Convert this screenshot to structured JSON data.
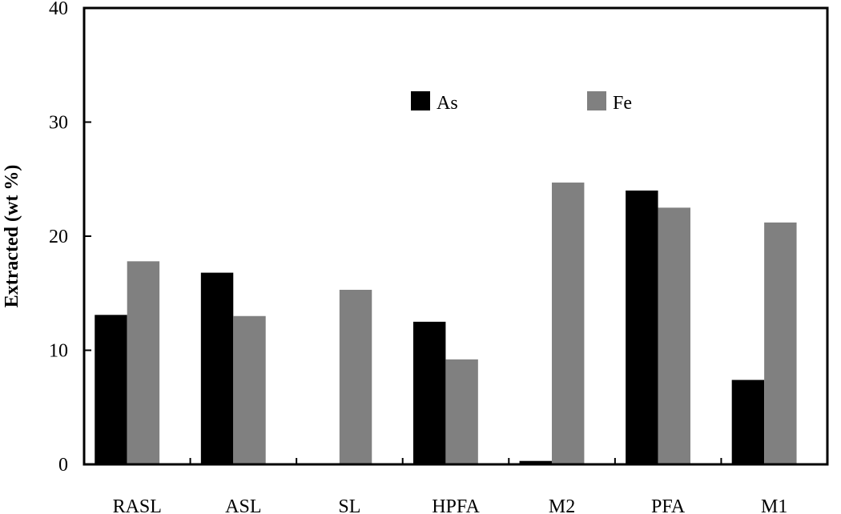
{
  "chart_data": {
    "type": "bar",
    "title": "",
    "xlabel": "",
    "ylabel": "Extracted (wt %)",
    "ylim": [
      0,
      40
    ],
    "yticks": [
      0,
      10,
      20,
      30,
      40
    ],
    "grid": false,
    "legend_position": "top-center",
    "categories": [
      "RASL",
      "ASL",
      "SL",
      "HPFA",
      "M2",
      "PFA",
      "M1"
    ],
    "series": [
      {
        "name": "As",
        "color": "#000000",
        "values": [
          13.1,
          16.8,
          0.0,
          12.5,
          0.3,
          24.0,
          7.4
        ]
      },
      {
        "name": "Fe",
        "color": "#808080",
        "values": [
          17.8,
          13.0,
          15.3,
          9.2,
          24.7,
          22.5,
          21.2
        ]
      }
    ]
  }
}
